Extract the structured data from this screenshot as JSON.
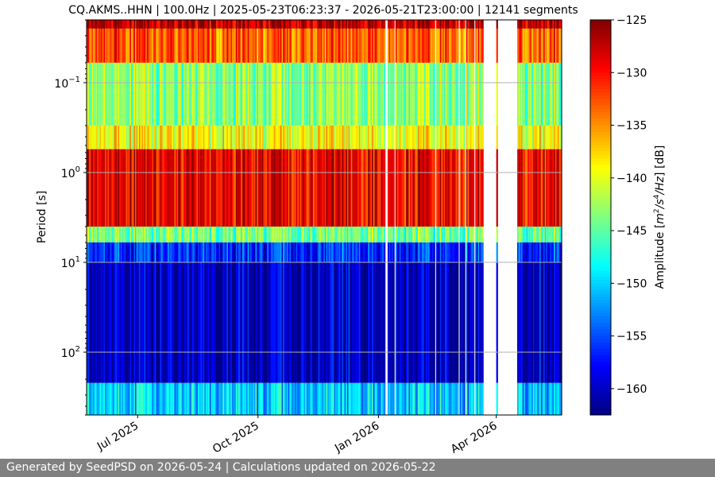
{
  "chart_data": {
    "type": "heatmap",
    "title": "CQ.AKMS..HHN | 100.0Hz | 2025-05-23T06:23:37 - 2026-05-21T23:00:00 | 12141 segments",
    "ylabel": "Period [s]",
    "colorbar_label": "Amplitude [m²/s⁴/Hz] [dB]",
    "colorbar_label_parts": {
      "pre": "Amplitude [",
      "m": "m",
      "exp2": "2",
      "slash1": "/",
      "s": "s",
      "exp4": "4",
      "slash2": "/",
      "hz": "Hz",
      "post": "] [dB]"
    },
    "colormap": "jet",
    "x_range": [
      "2025-05-23",
      "2026-05-21"
    ],
    "x_ticks": [
      {
        "date": "2025-07-01",
        "label": "Jul 2025"
      },
      {
        "date": "2025-10-01",
        "label": "Oct 2025"
      },
      {
        "date": "2026-01-01",
        "label": "Jan 2026"
      },
      {
        "date": "2026-04-01",
        "label": "Apr 2026"
      }
    ],
    "y_scale": "log",
    "y_inverted": true,
    "y_range": [
      0.02,
      500
    ],
    "y_ticks": [
      {
        "value": 0.1,
        "base": "10",
        "exp": "−1"
      },
      {
        "value": 1,
        "base": "10",
        "exp": "0"
      },
      {
        "value": 10,
        "base": "10",
        "exp": "1"
      },
      {
        "value": 100,
        "base": "10",
        "exp": "2"
      }
    ],
    "color_range": [
      -162.5,
      -125
    ],
    "colorbar_ticks": [
      -125,
      -130,
      -135,
      -140,
      -145,
      -150,
      -155,
      -160
    ],
    "colorbar_tick_labels": [
      "−125",
      "−130",
      "−135",
      "−140",
      "−145",
      "−150",
      "−155",
      "−160"
    ],
    "grid": true,
    "data_gaps": [
      [
        "2026-01-06",
        "2026-01-08"
      ],
      [
        "2026-01-13",
        "2026-01-14"
      ],
      [
        "2026-02-13",
        "2026-02-14"
      ],
      [
        "2026-03-03",
        "2026-03-04"
      ],
      [
        "2026-03-08",
        "2026-03-09"
      ],
      [
        "2026-03-15",
        "2026-03-16"
      ],
      [
        "2026-03-22",
        "2026-04-01"
      ],
      [
        "2026-04-02",
        "2026-04-17"
      ]
    ],
    "period_levels": [
      {
        "period_max": 0.025,
        "dB": -127
      },
      {
        "period_max": 0.06,
        "dB": -133
      },
      {
        "period_max": 0.3,
        "dB": -143
      },
      {
        "period_max": 0.55,
        "dB": -139
      },
      {
        "period_max": 4,
        "dB": -129
      },
      {
        "period_max": 6,
        "dB": -144
      },
      {
        "period_max": 10,
        "dB": -156
      },
      {
        "period_max": 220,
        "dB": -160
      },
      {
        "period_max": 500,
        "dB": -150
      }
    ]
  },
  "footer": {
    "text": "Generated by SeedPSD on 2026-05-24 | Calculations updated on 2026-05-22"
  }
}
